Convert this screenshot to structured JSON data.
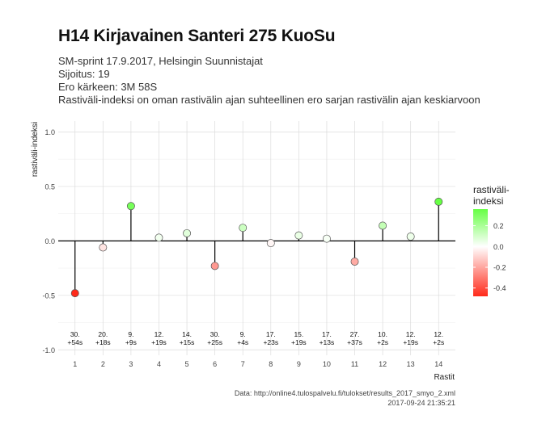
{
  "title": "H14 Kirjavainen Santeri 275 KuoSu",
  "subtitle": [
    "SM-sprint 17.9.2017, Helsingin Suunnistajat",
    "Sijoitus: 19",
    "Ero kärkeen: 3M 58S",
    "Rastiväli-indeksi on oman rastivälin ajan suhteellinen ero sarjan rastivälin ajan keskiarvoon"
  ],
  "caption": [
    "Data: http://online4.tulospalvelu.fi/tulokset/results_2017_smyo_2.xml",
    "2017-09-24 21:35:21"
  ],
  "chart_data": {
    "type": "lollipop",
    "xlabel": "Rastit",
    "ylabel": "rastiväli-indeksi",
    "ylim": [
      -1.05,
      1.1
    ],
    "yticks": [
      1.0,
      0.5,
      0.0,
      -0.5,
      -1.0
    ],
    "ytick_labels": [
      "1.0",
      "0.5",
      "0.0",
      "-0.5",
      "-1.0"
    ],
    "x": [
      1,
      2,
      3,
      4,
      5,
      6,
      7,
      8,
      9,
      10,
      11,
      12,
      13,
      14
    ],
    "values": [
      -0.48,
      -0.06,
      0.32,
      0.03,
      0.07,
      -0.23,
      0.12,
      -0.02,
      0.05,
      0.02,
      -0.19,
      0.14,
      0.04,
      0.36
    ],
    "labels_line1": [
      "30.",
      "20.",
      "9.",
      "12.",
      "14.",
      "30.",
      "9.",
      "17.",
      "15.",
      "17.",
      "27.",
      "10.",
      "12.",
      "12."
    ],
    "labels_line2": [
      "+54s",
      "+18s",
      "+9s",
      "+19s",
      "+15s",
      "+25s",
      "+4s",
      "+23s",
      "+19s",
      "+13s",
      "+37s",
      "+2s",
      "+19s",
      "+2s"
    ],
    "label_y": -0.9,
    "grid": true,
    "legend": {
      "title_line1": "rastiväli-",
      "title_line2": "indeksi",
      "placement": "right",
      "breaks": [
        0.2,
        0.0,
        -0.2,
        -0.4
      ],
      "break_labels": [
        "0.2",
        "0.0",
        "-0.2",
        "-0.4"
      ],
      "range": [
        -0.48,
        0.36
      ],
      "low_color": "#ff2a1a",
      "mid_color": "#ffffff",
      "high_color": "#66ff44"
    }
  }
}
